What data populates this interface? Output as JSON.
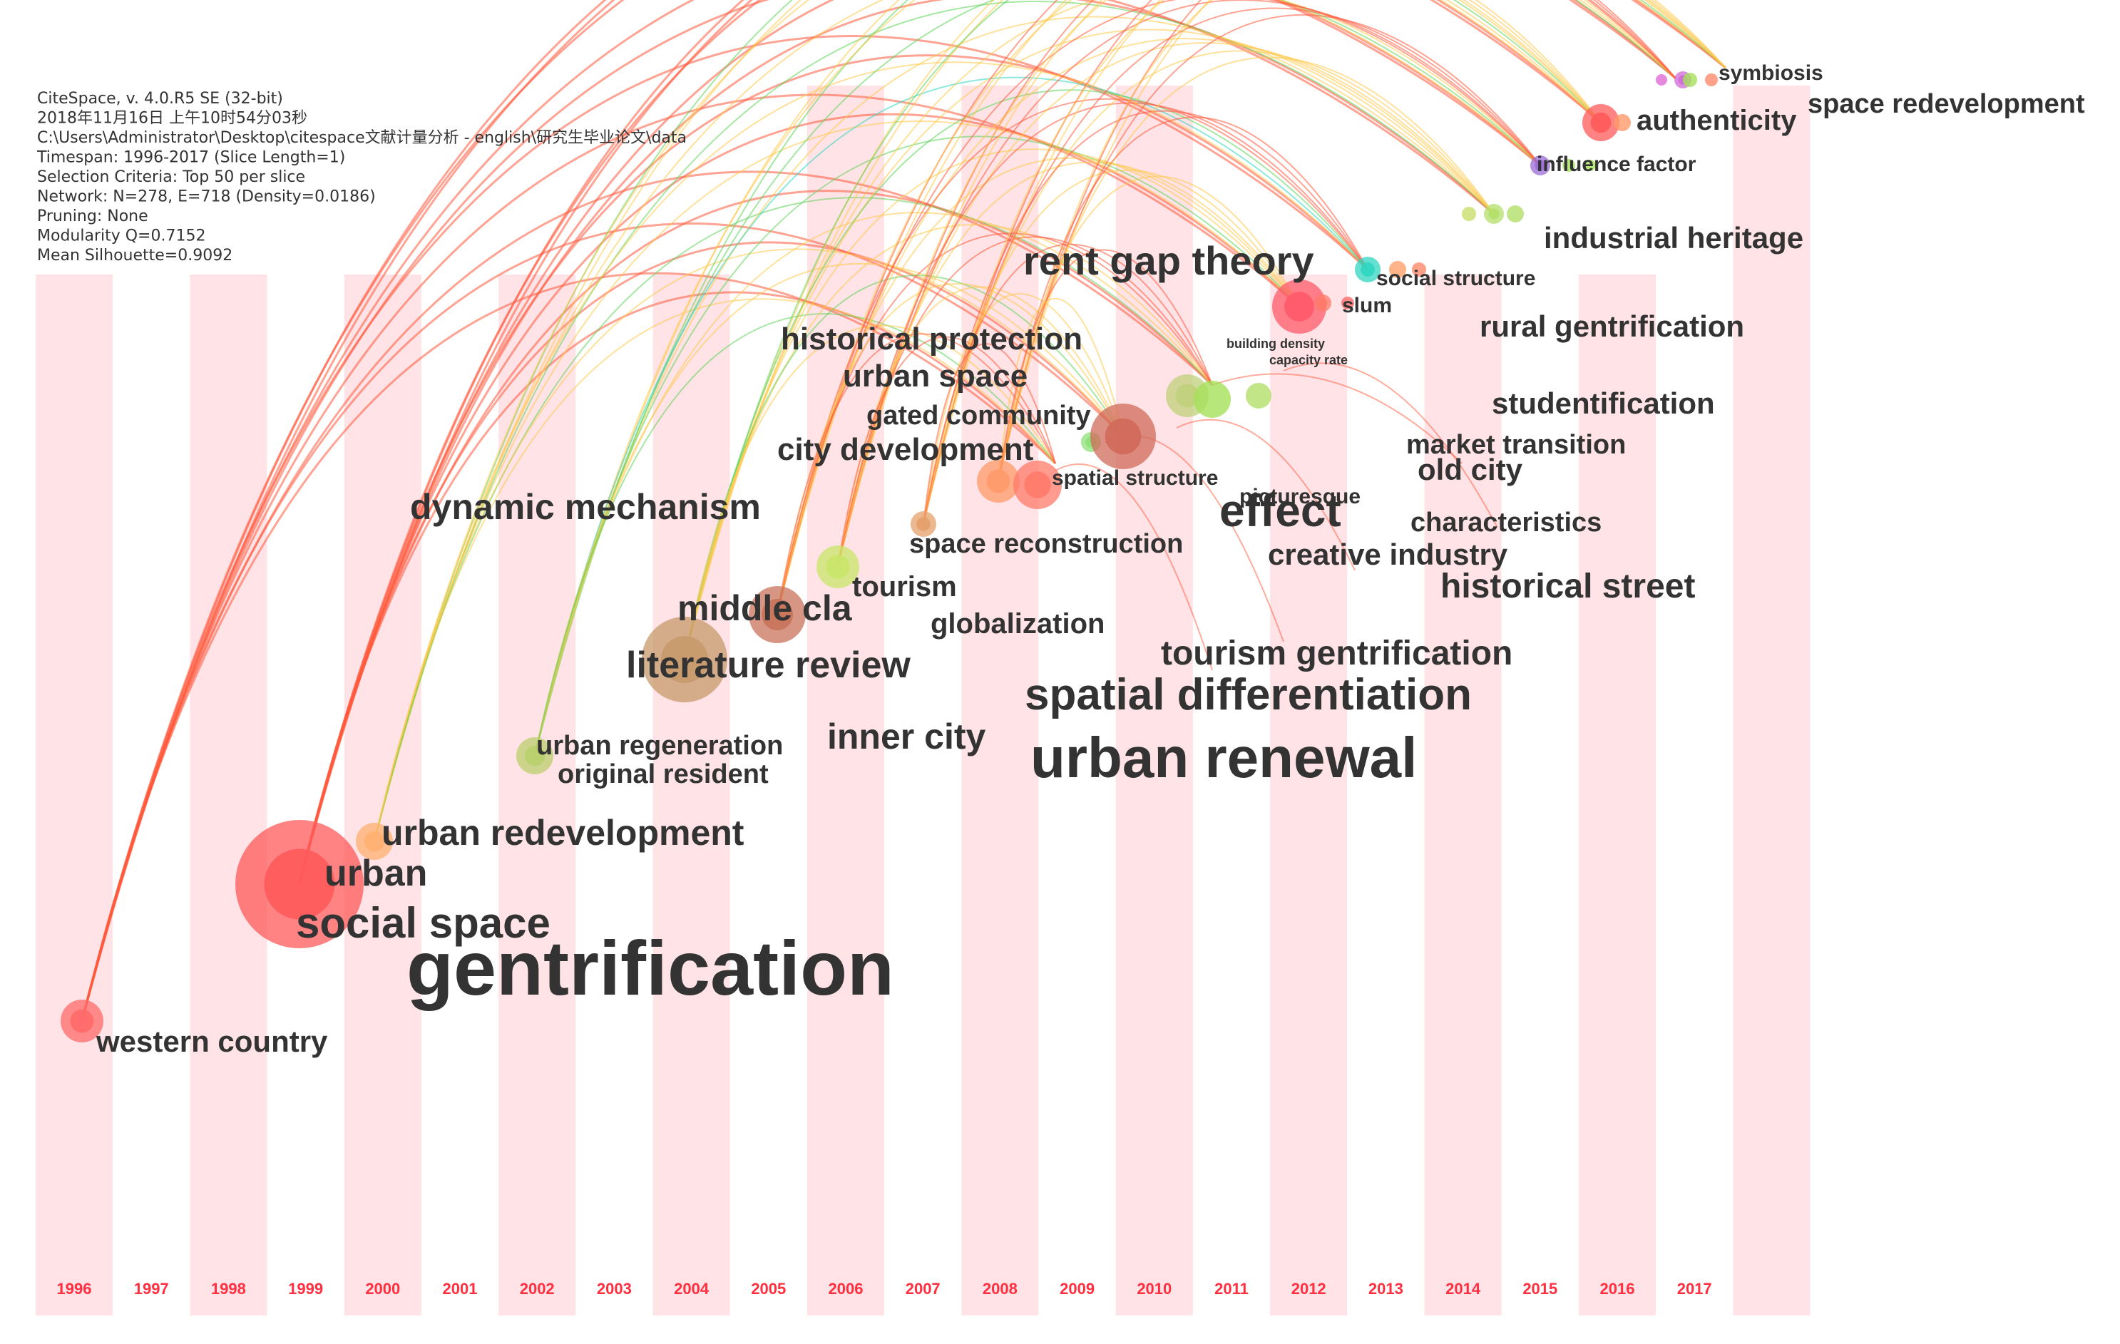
{
  "info": {
    "lines": [
      "CiteSpace, v. 4.0.R5 SE (32-bit)",
      "2018年11月16日 上午10时54分03秒",
      "C:\\Users\\Administrator\\Desktop\\citespace文献计量分析 - english\\研究生毕业论文\\data",
      "Timespan: 1996-2017 (Slice Length=1)",
      "Selection Criteria: Top 50 per slice",
      "Network: N=278, E=718 (Density=0.0186)",
      "Pruning: None",
      "Modularity Q=0.7152",
      "Mean Silhouette=0.9092"
    ]
  },
  "years": [
    "1996",
    "1997",
    "1998",
    "1999",
    "2000",
    "2001",
    "2002",
    "2003",
    "2004",
    "2005",
    "2006",
    "2007",
    "2008",
    "2009",
    "2010",
    "2011",
    "2012",
    "2013",
    "2014",
    "2015",
    "2016",
    "2017"
  ],
  "keywords": [
    {
      "text": "gentrification",
      "year": 1999,
      "node": "#ff5a5a",
      "size": 82
    },
    {
      "text": "social space",
      "year": 1999,
      "node": "#ff8c6b",
      "size": 34
    },
    {
      "text": "urban",
      "year": 1999,
      "node": "#ff7a5a",
      "size": 30
    },
    {
      "text": "urban redevelopment",
      "year": 2000,
      "node": "#ffb070",
      "size": 27
    },
    {
      "text": "western country",
      "year": 1996,
      "node": "#ff6a6a",
      "size": 24
    },
    {
      "text": "urban regeneration",
      "year": 2002,
      "node": "#b9cf6b",
      "size": 22
    },
    {
      "text": "original resident",
      "year": 2002,
      "node": "#b9cf6b",
      "size": 22
    },
    {
      "text": "literature review",
      "year": 2004,
      "node": "#c79a6b",
      "size": 30
    },
    {
      "text": "middle cla",
      "year": 2005,
      "node": "#c8735a",
      "size": 28
    },
    {
      "text": "dynamic mechanism",
      "year": 2004,
      "node": "#9be07a",
      "size": 30
    },
    {
      "text": "inner city",
      "year": 2006,
      "node": "#d6e07a",
      "size": 30
    },
    {
      "text": "tourism",
      "year": 2006,
      "node": "#c9e56a",
      "size": 24
    },
    {
      "text": "globalization",
      "year": 2007,
      "node": "#e6c56a",
      "size": 24
    },
    {
      "text": "space reconstruction",
      "year": 2007,
      "node": "#e6a06a",
      "size": 22
    },
    {
      "text": "city development",
      "year": 2008,
      "node": "#ff9a6a",
      "size": 26
    },
    {
      "text": "gated community",
      "year": 2008,
      "node": "#8ee07a",
      "size": 24
    },
    {
      "text": "urban space",
      "year": 2008,
      "node": "#d5e07a",
      "size": 26
    },
    {
      "text": "historical protection",
      "year": 2008,
      "node": "#ffcf6a",
      "size": 26
    },
    {
      "text": "spatial structure",
      "year": 2009,
      "node": "#ff7a6a",
      "size": 20
    },
    {
      "text": "urban renewal",
      "year": 2010,
      "node": "#d06a5a",
      "size": 46
    },
    {
      "text": "spatial differentiation",
      "year": 2010,
      "node": "#c0d07a",
      "size": 38
    },
    {
      "text": "tourism gentrification",
      "year": 2011,
      "node": "#b5d06a",
      "size": 28
    },
    {
      "text": "effect",
      "year": 2012,
      "node": "#ff6a6a",
      "size": 36
    },
    {
      "text": "rent gap theory",
      "year": 2012,
      "node": "#ff5a6a",
      "size": 34
    },
    {
      "text": "building density",
      "year": 2012,
      "node": "#ffaf6a",
      "size": 12
    },
    {
      "text": "capacity rate",
      "year": 2012,
      "node": "#ffaf6a",
      "size": 12
    },
    {
      "text": "slum",
      "year": 2013,
      "node": "#ff7a6a",
      "size": 18
    },
    {
      "text": "social structure",
      "year": 2013,
      "node": "#2fd6c0",
      "size": 18
    },
    {
      "text": "picturesque",
      "year": 2012,
      "node": "#ff9a6a",
      "size": 18
    },
    {
      "text": "creative industry",
      "year": 2013,
      "node": "#ffc06a",
      "size": 26
    },
    {
      "text": "historical street",
      "year": 2014,
      "node": "#ff8a6a",
      "size": 30
    },
    {
      "text": "characteristics",
      "year": 2014,
      "node": "#ff9a6a",
      "size": 22
    },
    {
      "text": "old city",
      "year": 2014,
      "node": "#ffb06a",
      "size": 26
    },
    {
      "text": "market transition",
      "year": 2014,
      "node": "#ffb06a",
      "size": 22
    },
    {
      "text": "studentification",
      "year": 2015,
      "node": "#ff8a6a",
      "size": 26
    },
    {
      "text": "rural gentrification",
      "year": 2015,
      "node": "#ff9a6a",
      "size": 26
    },
    {
      "text": "industrial heritage",
      "year": 2015,
      "node": "#b3df6a",
      "size": 26
    },
    {
      "text": "influence factor",
      "year": 2015,
      "node": "#9a6bd6",
      "size": 18
    },
    {
      "text": "authenticity",
      "year": 2016,
      "node": "#ff5a5a",
      "size": 26
    },
    {
      "text": "space redevelopment",
      "year": 2017,
      "node": "#ff6a6a",
      "size": 24
    },
    {
      "text": "symbiosis",
      "year": 2017,
      "node": "#d06ad6",
      "size": 18
    }
  ],
  "colors": {
    "band": "#ffe3e6",
    "year_text": "#ff2f3f",
    "label": "#333333",
    "links_old": "#ff5a3c",
    "links_mid": "#ffc84a",
    "links_new": "#5fd35a",
    "links_teal": "#2fd6c0"
  }
}
